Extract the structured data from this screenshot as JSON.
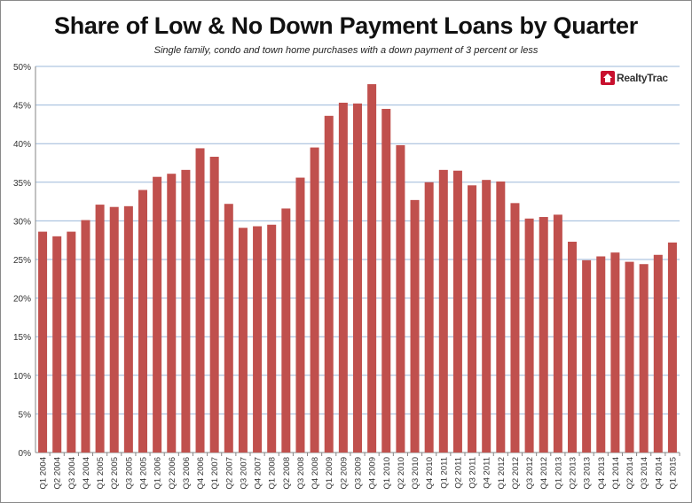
{
  "title": "Share of Low & No Down Payment Loans by Quarter",
  "subtitle": "Single family, condo and town home purchases with a down payment of 3 percent or less",
  "logo_text": "RealtyTrac",
  "colors": {
    "bar": "#c0504d",
    "grid": "#9bb7d9",
    "axis": "#868686"
  },
  "chart_data": {
    "type": "bar",
    "title": "Share of Low & No Down Payment Loans by Quarter",
    "subtitle": "Single family, condo and town home purchases with a down payment of 3 percent or less",
    "xlabel": "",
    "ylabel": "",
    "ylim": [
      0,
      50
    ],
    "yticks": [
      "0%",
      "5%",
      "10%",
      "15%",
      "20%",
      "25%",
      "30%",
      "35%",
      "40%",
      "45%",
      "50%"
    ],
    "grid": true,
    "legend": "none",
    "categories": [
      "Q1 2004",
      "Q2 2004",
      "Q3 2004",
      "Q4 2004",
      "Q1 2005",
      "Q2 2005",
      "Q3 2005",
      "Q4 2005",
      "Q1 2006",
      "Q2 2006",
      "Q3 2006",
      "Q4 2006",
      "Q1 2007",
      "Q2 2007",
      "Q3 2007",
      "Q4 2007",
      "Q1 2008",
      "Q2 2008",
      "Q3 2008",
      "Q4 2008",
      "Q1 2009",
      "Q2 2009",
      "Q3 2009",
      "Q4 2009",
      "Q1 2010",
      "Q2 2010",
      "Q3 2010",
      "Q4 2010",
      "Q1 2011",
      "Q2 2011",
      "Q3 2011",
      "Q4 2011",
      "Q1 2012",
      "Q2 2012",
      "Q3 2012",
      "Q4 2012",
      "Q1 2013",
      "Q2 2013",
      "Q3 2013",
      "Q4 2013",
      "Q1 2014",
      "Q2 2014",
      "Q3 2014",
      "Q4 2014",
      "Q1 2015"
    ],
    "values": [
      28.6,
      28.0,
      28.6,
      30.1,
      32.1,
      31.8,
      31.9,
      34.0,
      35.7,
      36.1,
      36.6,
      39.4,
      38.3,
      32.2,
      29.1,
      29.3,
      29.5,
      31.6,
      35.6,
      39.5,
      43.6,
      45.3,
      45.2,
      47.7,
      44.5,
      39.8,
      32.7,
      35.0,
      36.6,
      36.5,
      34.6,
      35.3,
      35.1,
      32.3,
      30.3,
      30.5,
      30.8,
      27.3,
      24.9,
      25.4,
      25.9,
      24.7,
      24.4,
      25.6,
      27.2
    ]
  }
}
